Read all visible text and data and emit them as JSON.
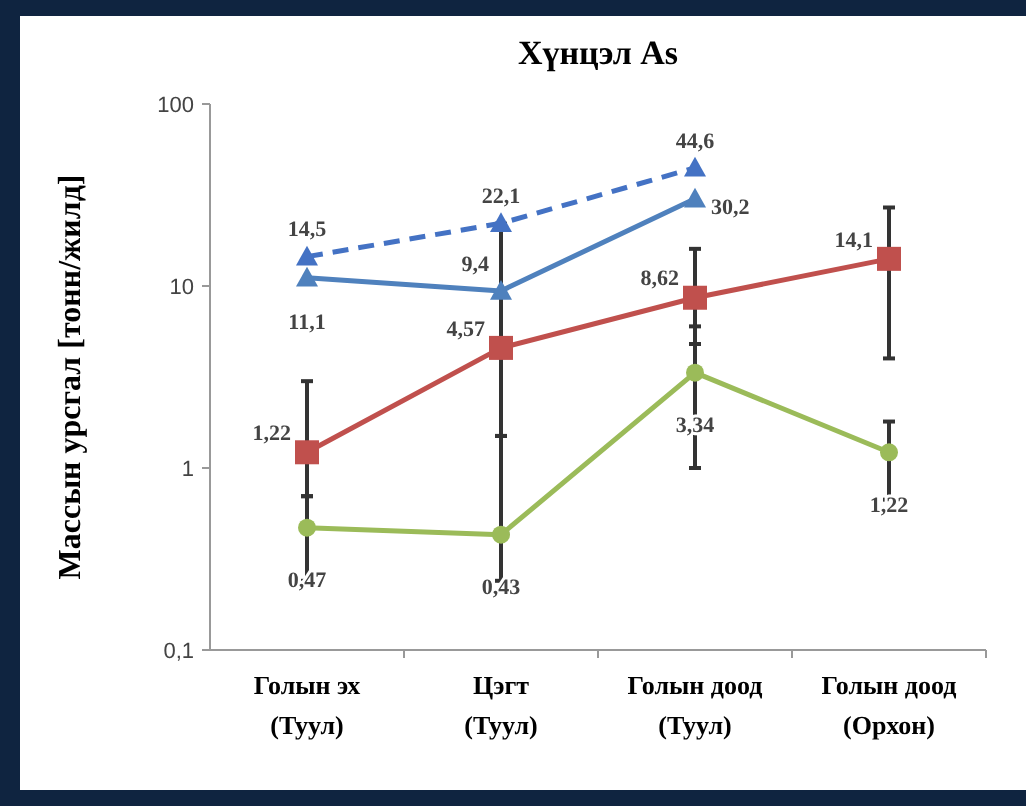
{
  "chart_data": {
    "type": "line",
    "title": "Хүнцэл  As",
    "ylabel": "Массын урсгал [тонн/жилд]",
    "categories": [
      "Голын эх (Туул)",
      "Цэгт (Туул)",
      "Голын доод (Туул)",
      "Голын доод (Орхон)"
    ],
    "series": [
      {
        "color": "#4472c4",
        "line_style": "dashed",
        "marker": "triangle",
        "values": [
          14.5,
          22.1,
          44.6,
          null
        ],
        "value_labels": [
          "14,5",
          "22,1",
          "44,6",
          null
        ]
      },
      {
        "color": "#4f81bd",
        "line_style": "solid",
        "marker": "triangle",
        "values": [
          11.1,
          9.4,
          30.2,
          null
        ],
        "value_labels": [
          "11,1",
          "9,4",
          "30,2",
          null
        ]
      },
      {
        "color": "#c0504d",
        "line_style": "solid",
        "marker": "square",
        "values": [
          1.22,
          4.57,
          8.62,
          14.1
        ],
        "errors": [
          [
            0.7,
            3
          ],
          [
            1.5,
            22
          ],
          [
            4.8,
            16
          ],
          [
            4,
            27
          ]
        ],
        "value_labels": [
          "1,22",
          "4,57",
          "8,62",
          "14,1"
        ]
      },
      {
        "color": "#9bbb59",
        "line_style": "solid",
        "marker": "circle",
        "values": [
          0.47,
          0.43,
          3.34,
          1.22
        ],
        "errors": [
          [
            0.24,
            0.7
          ],
          [
            0.24,
            1.5
          ],
          [
            1,
            6
          ],
          [
            0.67,
            1.8
          ]
        ],
        "value_labels": [
          "0,47",
          "0,43",
          "3,34",
          "1,22"
        ]
      }
    ],
    "log": true,
    "ylim": [
      0.1,
      100
    ],
    "yticks": [
      {
        "value": 0.1,
        "label": "0,1"
      },
      1,
      10,
      100
    ],
    "grid": false
  }
}
